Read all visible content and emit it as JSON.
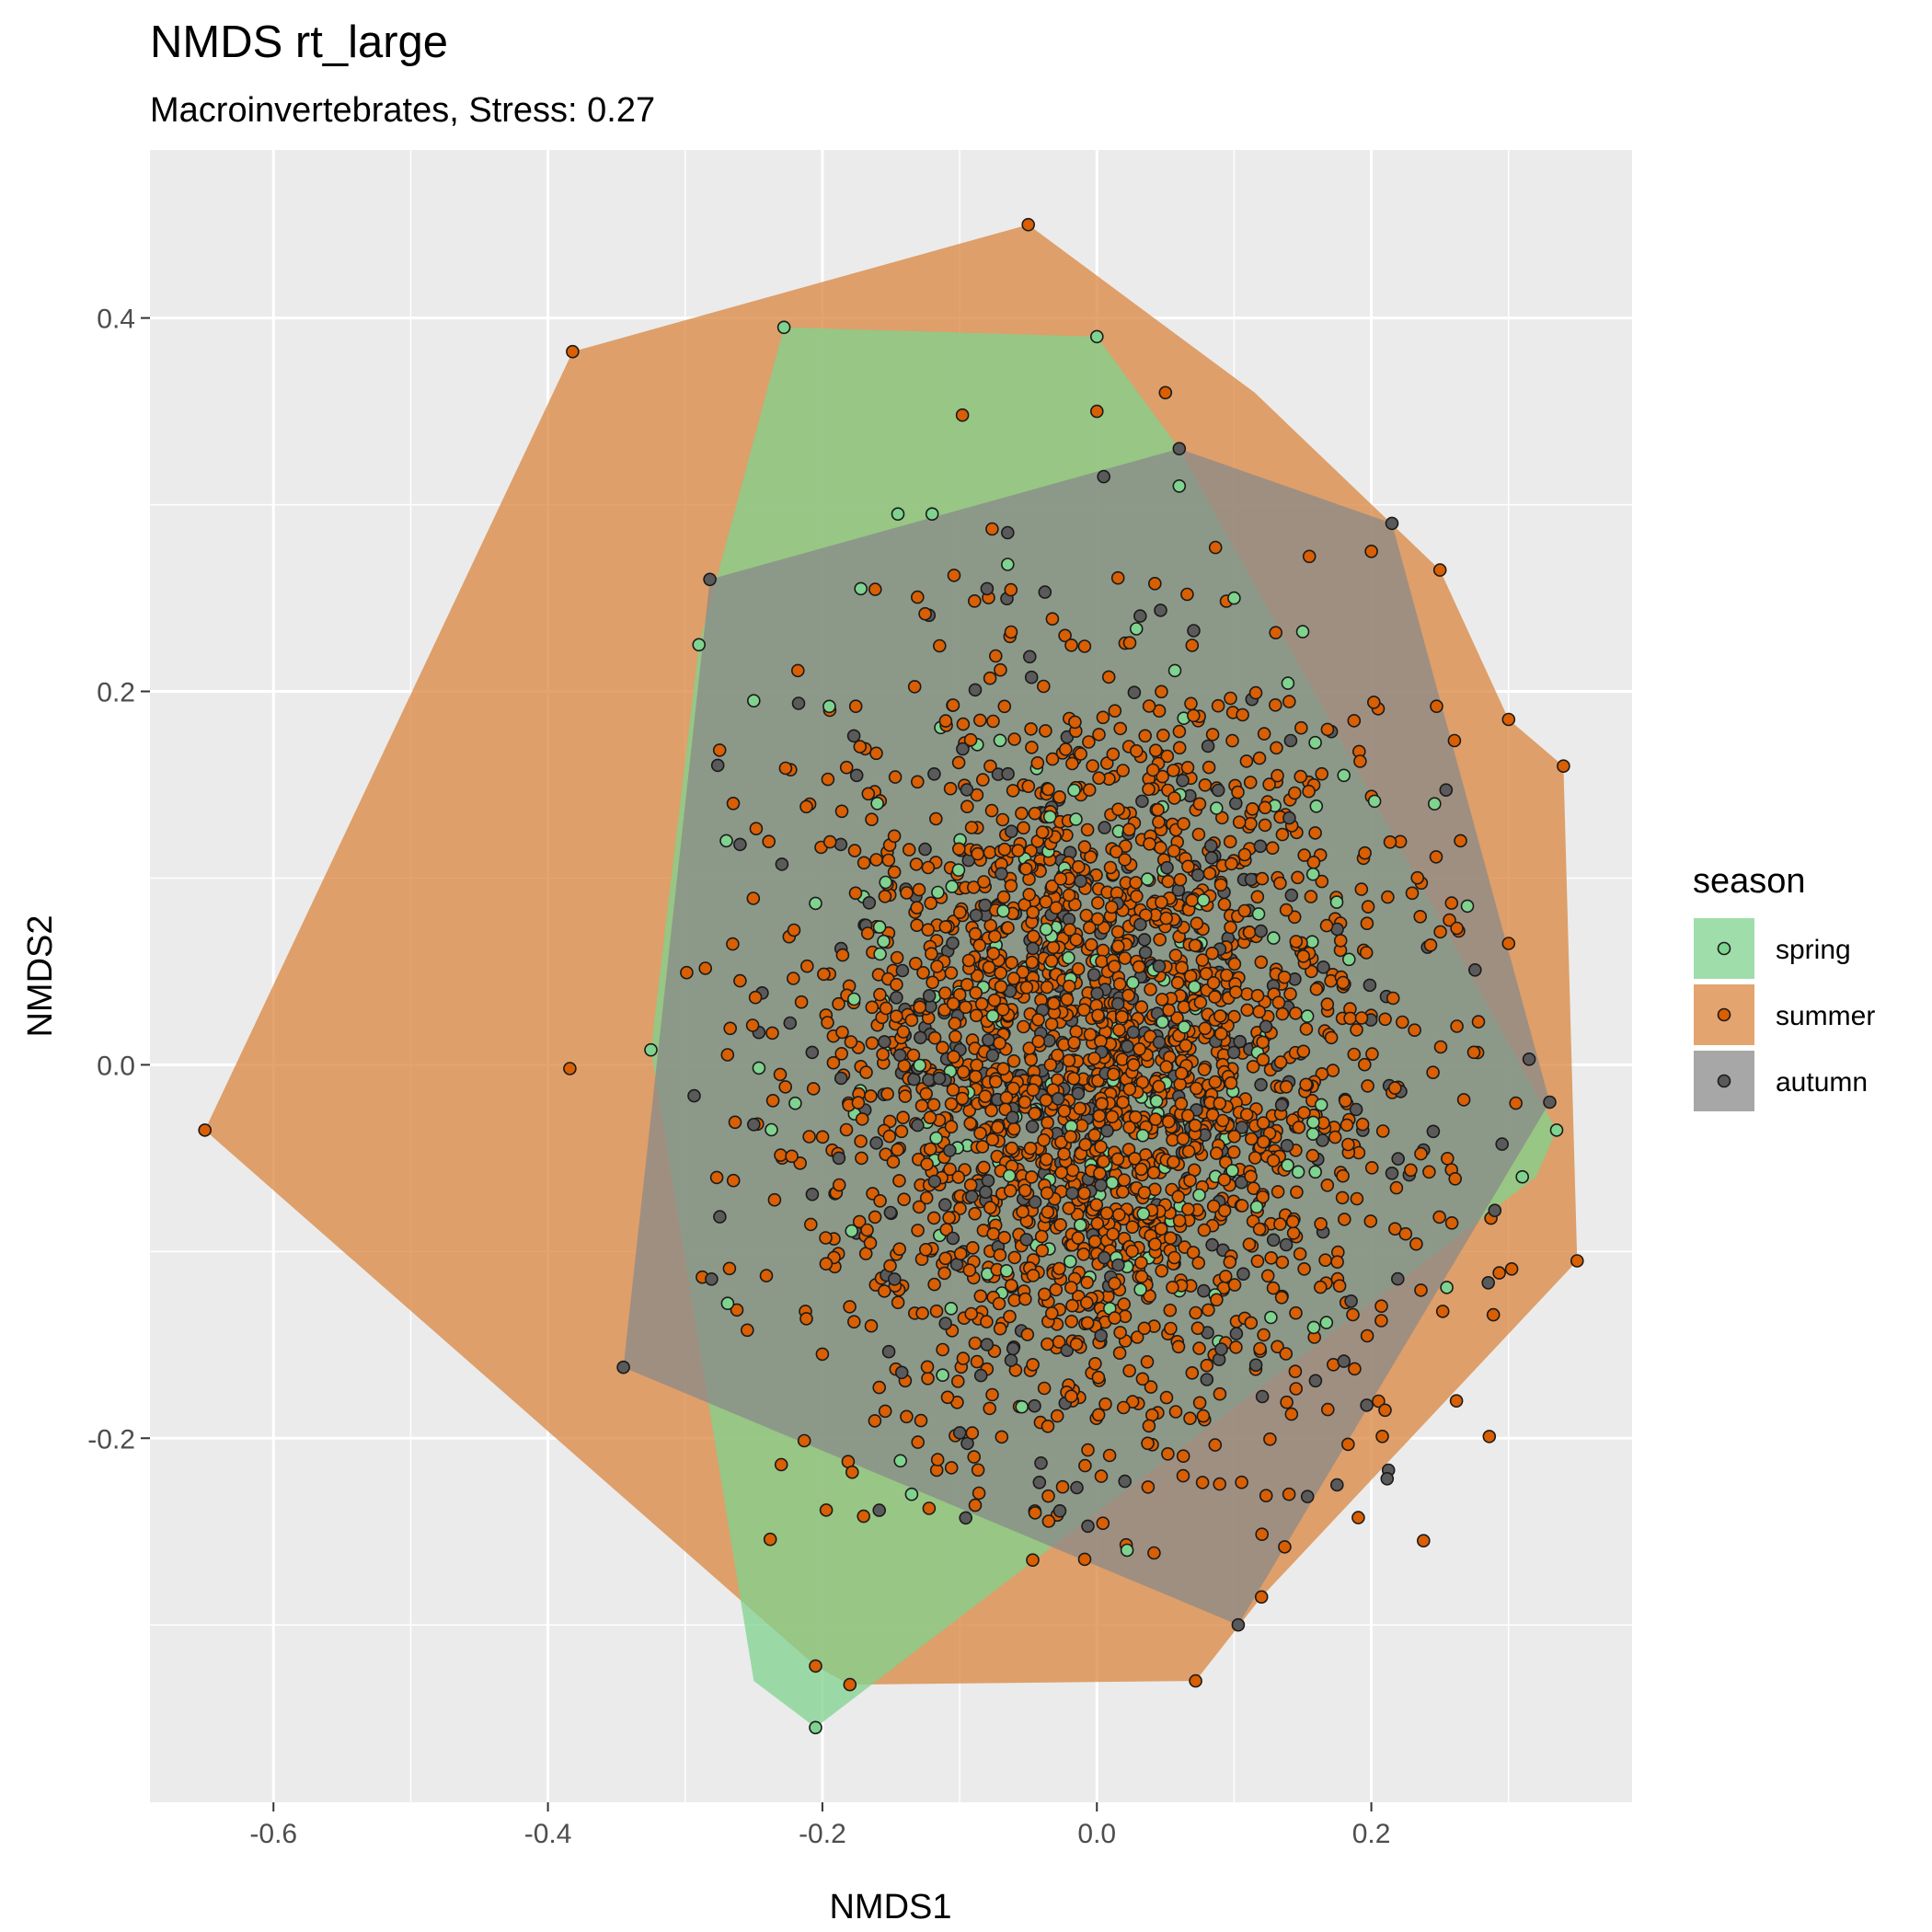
{
  "chart_data": {
    "type": "scatter",
    "title": "NMDS rt_large",
    "subtitle": "Macroinvertebrates, Stress: 0.27",
    "xlabel": "NMDS1",
    "ylabel": "NMDS2",
    "xlim": [
      -0.69,
      0.39
    ],
    "ylim": [
      -0.395,
      0.49
    ],
    "x_ticks": [
      -0.6,
      -0.4,
      -0.2,
      0.0,
      0.2
    ],
    "x_tick_labels": [
      "-0.6",
      "-0.4",
      "-0.2",
      "0.0",
      "0.2"
    ],
    "y_ticks": [
      -0.2,
      0.0,
      0.2,
      0.4
    ],
    "y_tick_labels": [
      "-0.2",
      "0.0",
      "0.2",
      "0.4"
    ],
    "grid": true,
    "legend_position": "right",
    "legend": {
      "title": "season",
      "entries": [
        {
          "label": "spring",
          "color": "#66c2a5"
        },
        {
          "label": "summer",
          "color": "#d95f02"
        },
        {
          "label": "autumn",
          "color": "#666666"
        }
      ]
    },
    "series": [
      {
        "name": "spring",
        "color": "#7fd38f",
        "hull_color": "#7fd38f",
        "hull": [
          [
            -0.228,
            0.395
          ],
          [
            0.0,
            0.39
          ],
          [
            0.06,
            0.33
          ],
          [
            0.335,
            -0.035
          ],
          [
            0.32,
            -0.06
          ],
          [
            -0.205,
            -0.355
          ],
          [
            -0.25,
            -0.33
          ],
          [
            -0.325,
            0.008
          ],
          [
            -0.29,
            0.225
          ]
        ],
        "points": [
          [
            -0.228,
            0.395
          ],
          [
            0.0,
            0.39
          ],
          [
            0.06,
            0.31
          ],
          [
            0.335,
            -0.035
          ],
          [
            -0.205,
            -0.355
          ],
          [
            -0.325,
            0.008
          ],
          [
            -0.29,
            0.225
          ],
          [
            -0.135,
            -0.23
          ],
          [
            0.022,
            -0.26
          ],
          [
            -0.172,
            0.255
          ],
          [
            -0.145,
            0.295
          ],
          [
            -0.12,
            0.295
          ],
          [
            0.1,
            0.25
          ],
          [
            0.15,
            0.232
          ],
          [
            -0.25,
            0.195
          ],
          [
            -0.27,
            0.12
          ],
          [
            -0.065,
            0.268
          ],
          [
            -0.195,
            0.192
          ],
          [
            -0.16,
            0.14
          ],
          [
            0.18,
            0.155
          ],
          [
            0.27,
            0.085
          ],
          [
            0.31,
            -0.06
          ]
        ]
      },
      {
        "name": "summer",
        "color": "#d95f02",
        "hull_color": "#d9853f",
        "hull": [
          [
            -0.05,
            0.45
          ],
          [
            0.115,
            0.36
          ],
          [
            0.25,
            0.265
          ],
          [
            0.3,
            0.185
          ],
          [
            0.34,
            0.16
          ],
          [
            0.35,
            -0.105
          ],
          [
            0.12,
            -0.285
          ],
          [
            0.072,
            -0.33
          ],
          [
            -0.18,
            -0.332
          ],
          [
            -0.205,
            -0.322
          ],
          [
            -0.65,
            -0.035
          ],
          [
            -0.382,
            0.382
          ]
        ],
        "points": [
          [
            -0.05,
            0.45
          ],
          [
            -0.382,
            0.382
          ],
          [
            -0.65,
            -0.035
          ],
          [
            -0.384,
            -0.002
          ],
          [
            0.35,
            -0.105
          ],
          [
            0.072,
            -0.33
          ],
          [
            -0.18,
            -0.332
          ],
          [
            -0.205,
            -0.322
          ],
          [
            0.12,
            -0.285
          ],
          [
            0.25,
            0.265
          ],
          [
            0.34,
            0.16
          ],
          [
            0.3,
            0.185
          ],
          [
            0.05,
            0.36
          ],
          [
            -0.098,
            0.348
          ],
          [
            0.0,
            0.35
          ],
          [
            0.2,
            0.275
          ],
          [
            0.265,
            0.12
          ],
          [
            0.3,
            0.065
          ],
          [
            0.262,
            -0.18
          ],
          [
            -0.2,
            -0.155
          ],
          [
            -0.26,
            0.045
          ],
          [
            -0.265,
            0.14
          ],
          [
            0.21,
            -0.185
          ],
          [
            0.14,
            -0.23
          ],
          [
            -0.045,
            -0.24
          ]
        ]
      },
      {
        "name": "autumn",
        "color": "#5a5a5a",
        "hull_color": "#8a8a8a",
        "hull": [
          [
            0.06,
            0.33
          ],
          [
            0.215,
            0.29
          ],
          [
            0.33,
            -0.02
          ],
          [
            0.103,
            -0.3
          ],
          [
            -0.345,
            -0.162
          ],
          [
            -0.282,
            0.26
          ]
        ],
        "points": [
          [
            0.06,
            0.33
          ],
          [
            0.215,
            0.29
          ],
          [
            0.33,
            -0.02
          ],
          [
            0.103,
            -0.3
          ],
          [
            -0.345,
            -0.162
          ],
          [
            -0.282,
            0.26
          ],
          [
            0.005,
            0.315
          ],
          [
            -0.065,
            0.285
          ],
          [
            -0.08,
            0.255
          ],
          [
            -0.26,
            0.118
          ],
          [
            -0.25,
            -0.032
          ],
          [
            0.175,
            -0.225
          ],
          [
            0.29,
            -0.078
          ],
          [
            -0.175,
            0.155
          ],
          [
            0.315,
            0.003
          ]
        ]
      }
    ],
    "cloud": {
      "center": [
        0.0,
        0.0
      ],
      "count": 2600,
      "mix": {
        "spring": 0.06,
        "summer": 0.8,
        "autumn": 0.14
      }
    }
  }
}
